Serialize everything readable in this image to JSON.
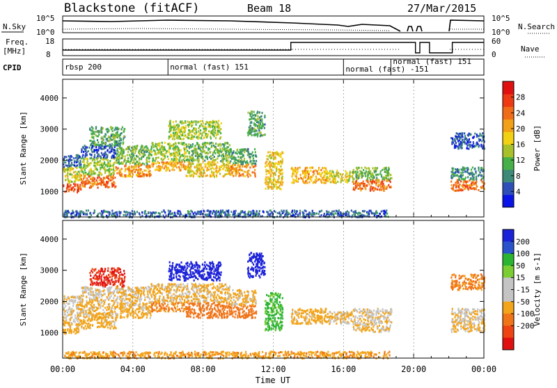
{
  "chart_data": {
    "type": "heatmap",
    "header": {
      "station": "Blackstone (fitACF)",
      "beam": "Beam 18",
      "date": "27/Mar/2015"
    },
    "panels": {
      "nsky": {
        "label": "N.Sky",
        "right_label": "N.Search",
        "left_ticks": [
          "10^5",
          "10^0"
        ],
        "right_ticks": [
          "10^5",
          "10^0"
        ]
      },
      "freq": {
        "label_line1": "Freq.",
        "label_line2": "[MHz]",
        "right_label": "Nave",
        "left_ticks": [
          "18",
          "8"
        ],
        "right_ticks": [
          "60",
          "0"
        ],
        "freq_steps": [
          {
            "t": 0.0,
            "v": 11
          },
          {
            "t": 13.0,
            "v": 11
          },
          {
            "t": 13.0,
            "v": 16.5
          },
          {
            "t": 20.1,
            "v": 16.5
          },
          {
            "t": 20.1,
            "v": 9
          },
          {
            "t": 20.35,
            "v": 9
          },
          {
            "t": 20.35,
            "v": 16.5
          },
          {
            "t": 20.9,
            "v": 16.5
          },
          {
            "t": 20.9,
            "v": 9
          },
          {
            "t": 22.2,
            "v": 9
          },
          {
            "t": 22.2,
            "v": 16.5
          },
          {
            "t": 24.0,
            "v": 16.5
          }
        ]
      },
      "cpid": {
        "label": "CPID",
        "segments": [
          {
            "start": 0.0,
            "label": "rbsp 200"
          },
          {
            "start": 6.0,
            "label": "normal (fast) 151"
          },
          {
            "start": 16.0,
            "label": "normal (fast) -151"
          },
          {
            "start": 18.7,
            "label": "normal (fast) 151"
          }
        ]
      },
      "power": {
        "ylabel": "Slant Range [km]",
        "yticks": [
          "1000",
          "2000",
          "3000",
          "4000"
        ],
        "ytick_values": [
          1000,
          2000,
          3000,
          4000
        ],
        "ylim": [
          180,
          4600
        ],
        "colorbar_label": "Power [dB]",
        "colorbar_ticks": [
          "4",
          "8",
          "12",
          "16",
          "20",
          "24",
          "28"
        ],
        "colorbar_tick_values": [
          4,
          8,
          12,
          16,
          20,
          24,
          28
        ],
        "colorbar_range": [
          0,
          32
        ],
        "colorbar_colors": [
          "#0a14e6",
          "#2f4fb8",
          "#3d8a78",
          "#48b048",
          "#a8c02a",
          "#f2d012",
          "#f2a018",
          "#f06c18",
          "#ee3a14",
          "#e01010"
        ]
      },
      "velocity": {
        "ylabel": "Slant Range [km]",
        "yticks": [
          "1000",
          "2000",
          "3000",
          "4000"
        ],
        "ytick_values": [
          1000,
          2000,
          3000,
          4000
        ],
        "ylim": [
          180,
          4600
        ],
        "colorbar_label": "Velocity [m s-1]",
        "colorbar_ticks": [
          "200",
          "100",
          "50",
          "15",
          "-15",
          "-50",
          "-100",
          "-200"
        ],
        "colorbar_colors": [
          "#1c22d8",
          "#2a52cc",
          "#2ab432",
          "#7acd32",
          "#c4c4c4",
          "#c4c4c4",
          "#f2a41a",
          "#f07418",
          "#ee4414",
          "#e01010"
        ]
      }
    },
    "xaxis": {
      "label": "Time UT",
      "ticks": [
        "00:00",
        "04:00",
        "08:00",
        "12:00",
        "16:00",
        "20:00",
        "00:00"
      ],
      "tick_values": [
        0,
        4,
        8,
        12,
        16,
        20,
        24
      ],
      "xlim": [
        0,
        24
      ]
    },
    "scatter_bands": [
      {
        "t0": 0.0,
        "t1": 1.0,
        "r0": 1000,
        "r1": 1300,
        "pw": 26,
        "vel": -30
      },
      {
        "t0": 0.0,
        "t1": 1.0,
        "r0": 1300,
        "r1": 1800,
        "pw": 16,
        "vel": -20
      },
      {
        "t0": 0.0,
        "t1": 1.0,
        "r0": 1800,
        "r1": 2200,
        "pw": 6,
        "vel": -10
      },
      {
        "t0": 1.0,
        "t1": 3.0,
        "r0": 1150,
        "r1": 1550,
        "pw": 24,
        "vel": -30
      },
      {
        "t0": 1.0,
        "t1": 3.0,
        "r0": 1550,
        "r1": 2100,
        "pw": 14,
        "vel": -20
      },
      {
        "t0": 1.0,
        "t1": 3.0,
        "r0": 2100,
        "r1": 2500,
        "pw": 5,
        "vel": -10
      },
      {
        "t0": 1.5,
        "t1": 3.5,
        "r0": 2500,
        "r1": 3100,
        "pw": 10,
        "vel": -150
      },
      {
        "t0": 3.0,
        "t1": 5.0,
        "r0": 1500,
        "r1": 1900,
        "pw": 22,
        "vel": -30
      },
      {
        "t0": 3.0,
        "t1": 5.0,
        "r0": 1900,
        "r1": 2500,
        "pw": 12,
        "vel": -20
      },
      {
        "t0": 5.0,
        "t1": 7.0,
        "r0": 1700,
        "r1": 2000,
        "pw": 20,
        "vel": -60
      },
      {
        "t0": 5.0,
        "t1": 7.0,
        "r0": 2000,
        "r1": 2600,
        "pw": 14,
        "vel": -20
      },
      {
        "t0": 6.0,
        "t1": 9.0,
        "r0": 2700,
        "r1": 3300,
        "pw": 14,
        "vel": 180
      },
      {
        "t0": 7.0,
        "t1": 9.5,
        "r0": 1500,
        "r1": 2000,
        "pw": 18,
        "vel": -70
      },
      {
        "t0": 7.0,
        "t1": 9.5,
        "r0": 2000,
        "r1": 2600,
        "pw": 12,
        "vel": -20
      },
      {
        "t0": 9.5,
        "t1": 11.0,
        "r0": 1500,
        "r1": 1900,
        "pw": 22,
        "vel": -80
      },
      {
        "t0": 9.5,
        "t1": 11.0,
        "r0": 1900,
        "r1": 2400,
        "pw": 10,
        "vel": -20
      },
      {
        "t0": 10.5,
        "t1": 11.5,
        "r0": 2800,
        "r1": 3600,
        "pw": 10,
        "vel": 190
      },
      {
        "t0": 11.5,
        "t1": 12.5,
        "r0": 1100,
        "r1": 2300,
        "pw": 18,
        "vel": 40
      },
      {
        "t0": 13.0,
        "t1": 15.0,
        "r0": 1300,
        "r1": 1800,
        "pw": 20,
        "vel": -30
      },
      {
        "t0": 15.0,
        "t1": 16.5,
        "r0": 1300,
        "r1": 1700,
        "pw": 16,
        "vel": -20
      },
      {
        "t0": 16.5,
        "t1": 18.7,
        "r0": 1050,
        "r1": 1400,
        "pw": 24,
        "vel": -20
      },
      {
        "t0": 16.5,
        "t1": 18.7,
        "r0": 1400,
        "r1": 1800,
        "pw": 12,
        "vel": -10
      },
      {
        "t0": 22.1,
        "t1": 24.0,
        "r0": 1050,
        "r1": 1400,
        "pw": 24,
        "vel": -20
      },
      {
        "t0": 22.1,
        "t1": 24.0,
        "r0": 1400,
        "r1": 1800,
        "pw": 8,
        "vel": -10
      },
      {
        "t0": 22.1,
        "t1": 24.0,
        "r0": 2400,
        "r1": 2900,
        "pw": 5,
        "vel": -60
      },
      {
        "t0": 0.0,
        "t1": 18.6,
        "r0": 200,
        "r1": 420,
        "pw": 6,
        "vel": -40
      }
    ]
  }
}
